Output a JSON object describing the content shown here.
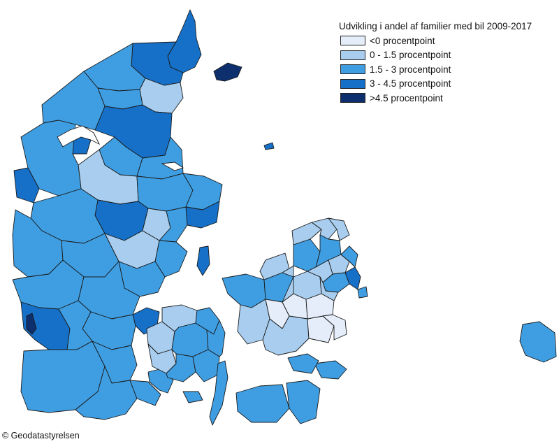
{
  "legend": {
    "title": "Udvikling i andel af familier med bil 2009-2017",
    "classes": [
      {
        "label": "<0 procentpoint",
        "color": "#e4edf9"
      },
      {
        "label": "0 - 1.5 procentpoint",
        "color": "#a8cdee"
      },
      {
        "label": "1.5 - 3 procentpoint",
        "color": "#3f9ee2"
      },
      {
        "label": "3 - 4.5 procentpoint",
        "color": "#1670c8"
      },
      {
        "label": ">4.5 procentpoint",
        "color": "#0d2f6d"
      }
    ]
  },
  "credit": "© Geodatastyrelsen",
  "colors": {
    "outline": "#1a1a1a",
    "background": "#ffffff"
  }
}
